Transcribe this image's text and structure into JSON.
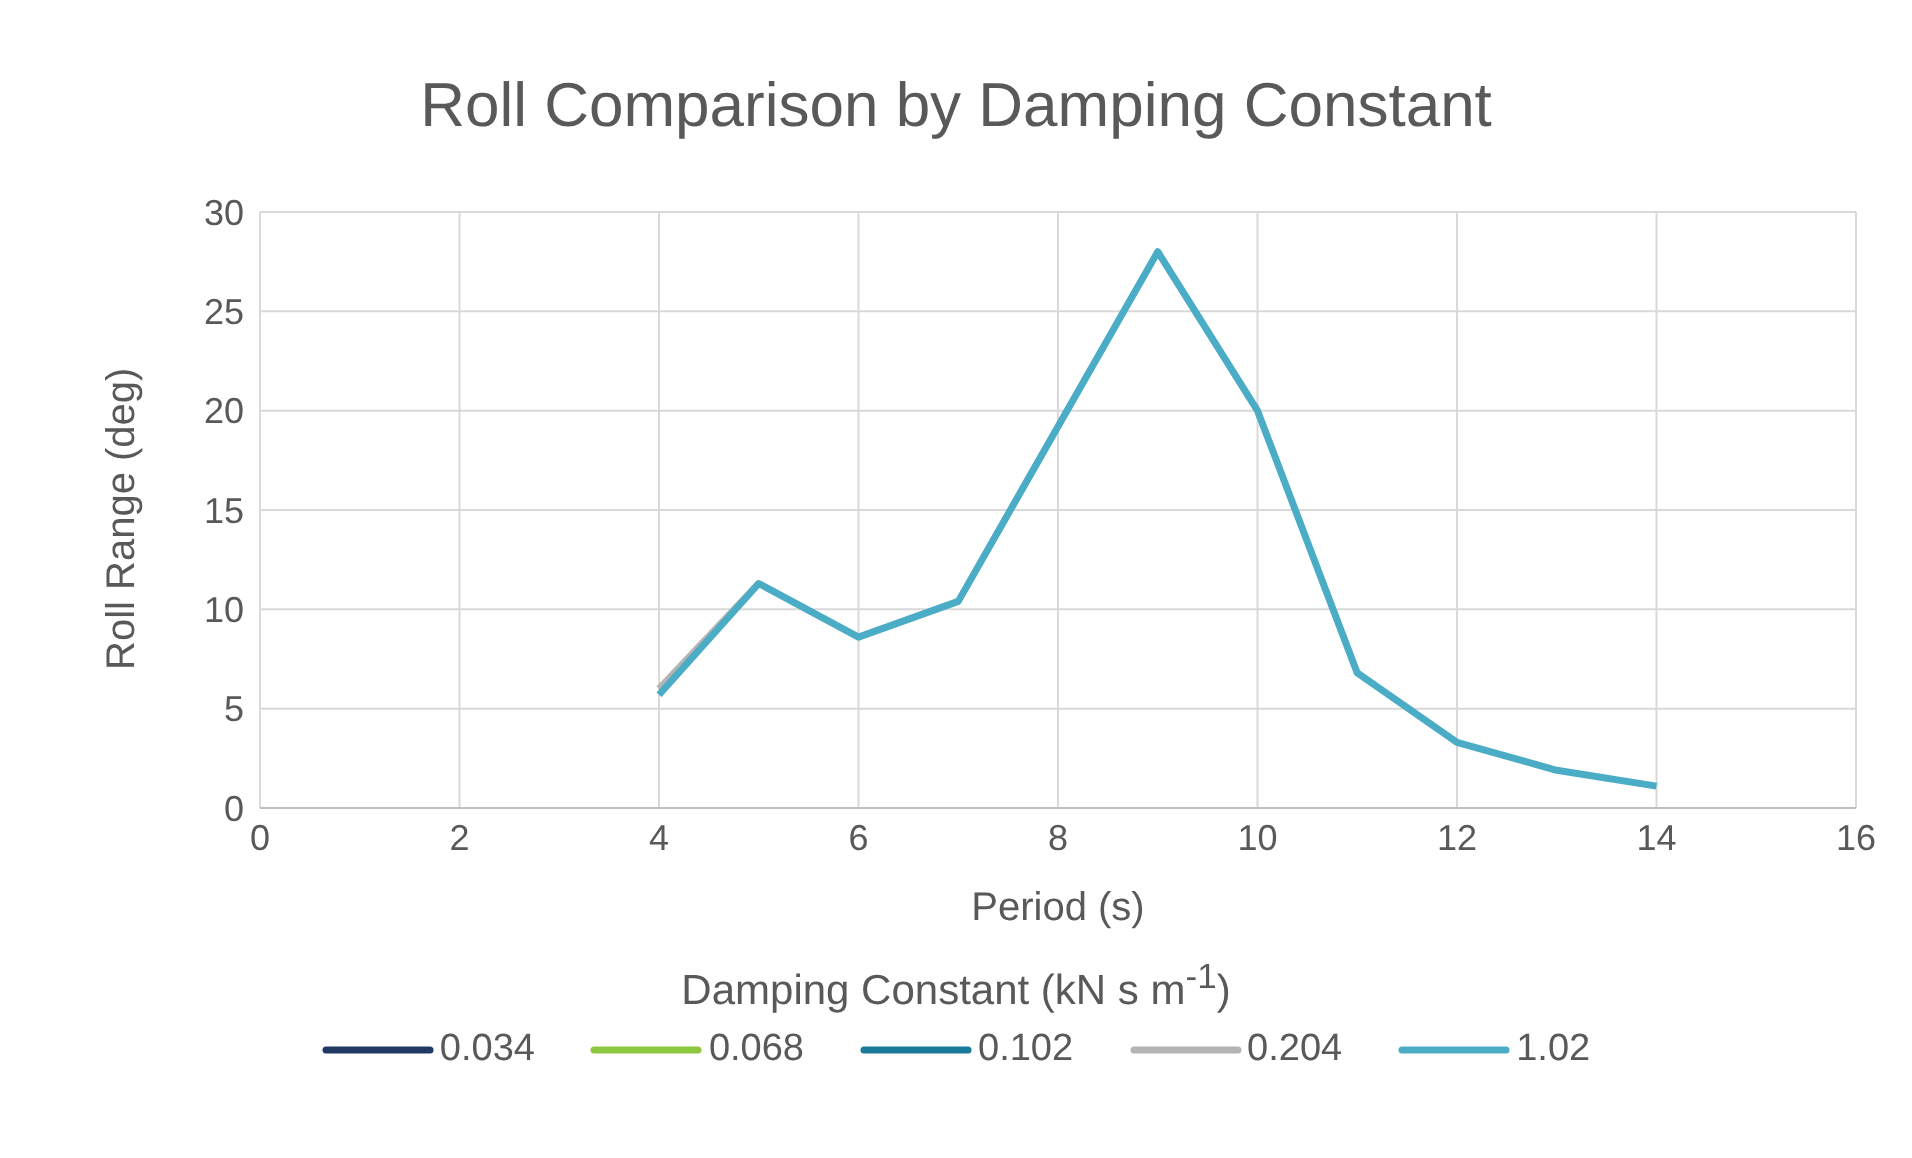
{
  "chart_data": {
    "type": "line",
    "title": "Roll Comparison by Damping Constant",
    "xlabel": "Period (s)",
    "ylabel": "Roll Range (deg)",
    "legend_title": "Damping Constant (kN s m$^{-1}$)",
    "x": [
      4,
      5,
      6,
      7,
      8,
      9,
      10,
      11,
      12,
      13,
      14
    ],
    "series": [
      {
        "name": "0.034",
        "color": "#1f3864",
        "values": [
          null,
          null,
          null,
          null,
          null,
          null,
          null,
          null,
          null,
          null,
          null
        ]
      },
      {
        "name": "0.068",
        "color": "#8dc63f",
        "values": [
          null,
          null,
          null,
          null,
          null,
          null,
          null,
          null,
          null,
          null,
          null
        ]
      },
      {
        "name": "0.102",
        "color": "#1a7a9a",
        "values": [
          null,
          null,
          null,
          null,
          null,
          null,
          null,
          null,
          null,
          null,
          null
        ]
      },
      {
        "name": "0.204",
        "color": "#b4b4b4",
        "values": [
          6.0,
          11.3,
          null,
          null,
          null,
          null,
          null,
          null,
          null,
          null,
          null
        ]
      },
      {
        "name": "1.02",
        "color": "#4bacc6",
        "values": [
          5.7,
          11.3,
          8.6,
          10.4,
          19.2,
          28,
          20,
          6.8,
          3.3,
          1.9,
          1.1
        ]
      }
    ],
    "xlim": [
      0,
      16
    ],
    "xticks": [
      0,
      2,
      4,
      6,
      8,
      10,
      12,
      14,
      16
    ],
    "ylim": [
      0,
      30
    ],
    "yticks": [
      0,
      5,
      10,
      15,
      20,
      25,
      30
    ],
    "grid": true,
    "legend": "bottom",
    "marker": "none",
    "line_style": "solid"
  }
}
